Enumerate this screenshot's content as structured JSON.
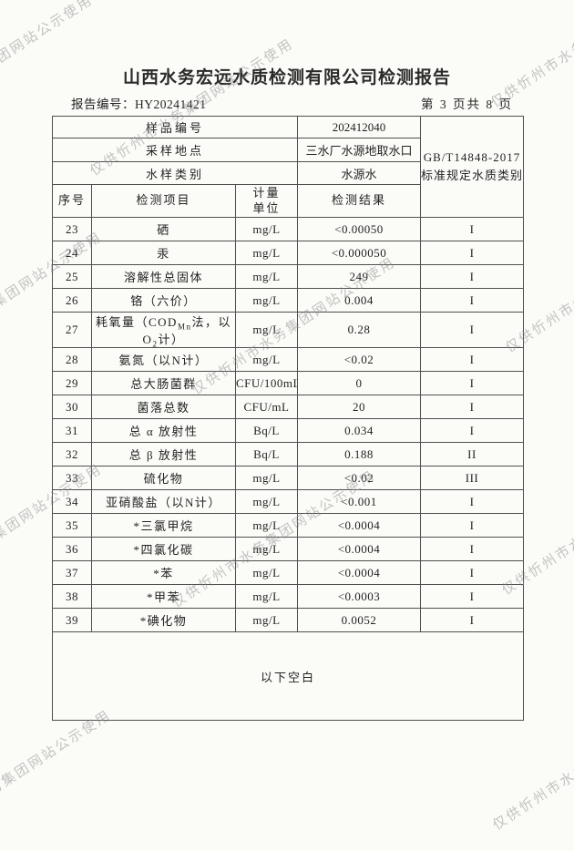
{
  "colors": {
    "paper": "#fbfbf8",
    "ink": "#232323",
    "border": "#4f4f4f",
    "wm": "#8a8a8a"
  },
  "page": {
    "title": "山西水务宏远水质检测有限公司检测报告",
    "report_no": "报告编号：HY20241421",
    "page_info": "第 3 页共 8 页"
  },
  "watermark": {
    "text": "仅供忻州市水务集团网站公示使用"
  },
  "table": {
    "info_rows": [
      {
        "label": "样品编号",
        "value": "202412040"
      },
      {
        "label": "采样地点",
        "value": "三水厂水源地取水口"
      },
      {
        "label": "水样类别",
        "value": "水源水"
      }
    ],
    "standard": {
      "line1": "GB/T14848-2017",
      "line2": "标准规定水质类别"
    },
    "columns": {
      "no": "序号",
      "item": "检测项目",
      "unit_line1": "计量",
      "unit_line2": "单位",
      "result": "检测结果"
    },
    "rows": [
      {
        "no": "23",
        "label": "硒",
        "unit": "mg/L",
        "result": "<0.00050",
        "category": "I"
      },
      {
        "no": "24",
        "label": "汞",
        "unit": "mg/L",
        "result": "<0.000050",
        "category": "I"
      },
      {
        "no": "25",
        "label": "溶解性总固体",
        "unit": "mg/L",
        "result": "249",
        "category": "I"
      },
      {
        "no": "26",
        "label": "铬（六价）",
        "unit": "mg/L",
        "result": "0.004",
        "category": "I"
      },
      {
        "no": "27",
        "label_runs": [
          [
            "t",
            "耗氧量（COD"
          ],
          [
            "s",
            "Mn"
          ],
          [
            "t",
            "法，以O"
          ],
          [
            "s",
            "2"
          ],
          [
            "t",
            "计）"
          ]
        ],
        "unit": "mg/L",
        "result": "0.28",
        "category": "I"
      },
      {
        "no": "28",
        "label": "氨氮（以N计）",
        "unit": "mg/L",
        "result": "<0.02",
        "category": "I"
      },
      {
        "no": "29",
        "label": "总大肠菌群",
        "unit": "CFU/100mL",
        "result": "0",
        "category": "I"
      },
      {
        "no": "30",
        "label": "菌落总数",
        "unit": "CFU/mL",
        "result": "20",
        "category": "I"
      },
      {
        "no": "31",
        "label": "总 α 放射性",
        "unit": "Bq/L",
        "result": "0.034",
        "category": "I"
      },
      {
        "no": "32",
        "label": "总 β 放射性",
        "unit": "Bq/L",
        "result": "0.188",
        "category": "II"
      },
      {
        "no": "33",
        "label": "硫化物",
        "unit": "mg/L",
        "result": "<0.02",
        "category": "III"
      },
      {
        "no": "34",
        "label": "亚硝酸盐（以N计）",
        "unit": "mg/L",
        "result": "<0.001",
        "category": "I"
      },
      {
        "no": "35",
        "label": "*三氯甲烷",
        "unit": "mg/L",
        "result": "<0.0004",
        "category": "I"
      },
      {
        "no": "36",
        "label": "*四氯化碳",
        "unit": "mg/L",
        "result": "<0.0004",
        "category": "I"
      },
      {
        "no": "37",
        "label": "*苯",
        "unit": "mg/L",
        "result": "<0.0004",
        "category": "I"
      },
      {
        "no": "38",
        "label": "*甲苯",
        "unit": "mg/L",
        "result": "<0.0003",
        "category": "I"
      },
      {
        "no": "39",
        "label": "*碘化物",
        "unit": "mg/L",
        "result": "0.0052",
        "category": "I"
      }
    ],
    "footer_note": "以下空白"
  }
}
